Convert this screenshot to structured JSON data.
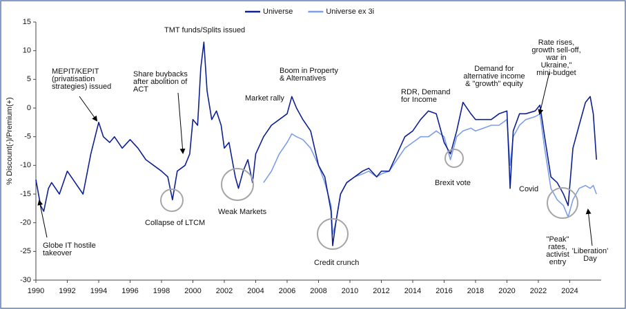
{
  "chart_data": {
    "type": "line",
    "ylabel": "% Discount(-)/Premium(+)",
    "x": [
      1990,
      1990.3,
      1990.5,
      1990.8,
      1991,
      1991.5,
      1992,
      1992.5,
      1993,
      1993.5,
      1994,
      1994.3,
      1994.7,
      1995,
      1995.5,
      1996,
      1996.5,
      1997,
      1997.5,
      1998,
      1998.4,
      1998.7,
      1999,
      1999.5,
      1999.8,
      2000,
      2000.3,
      2000.5,
      2000.7,
      2000.9,
      2001.2,
      2001.5,
      2001.8,
      2002,
      2002.3,
      2002.7,
      2002.9,
      2003.2,
      2003.5,
      2003.8,
      2004,
      2004.5,
      2005,
      2005.5,
      2006,
      2006.3,
      2006.6,
      2007,
      2007.5,
      2008,
      2008.4,
      2008.8,
      2008.9,
      2009.1,
      2009.4,
      2009.8,
      2010.3,
      2010.8,
      2011.2,
      2011.7,
      2012,
      2012.5,
      2013,
      2013.5,
      2014,
      2014.5,
      2015,
      2015.5,
      2016,
      2016.4,
      2016.8,
      2017.2,
      2017.7,
      2018,
      2018.5,
      2019,
      2019.5,
      2020,
      2020.2,
      2020.4,
      2020.8,
      2021.2,
      2021.8,
      2022.1,
      2022.4,
      2022.8,
      2023.2,
      2023.6,
      2023.9,
      2024.2,
      2024.6,
      2025,
      2025.3,
      2025.5,
      2025.7
    ],
    "series": [
      {
        "name": "Universe",
        "color": "#0d1f91",
        "values": [
          -12.5,
          -17,
          -18,
          -14,
          -13,
          -15,
          -11,
          -13,
          -15,
          -8,
          -2.5,
          -5,
          -6,
          -5,
          -7,
          -5.5,
          -7,
          -9,
          -10,
          -11,
          -12,
          -16,
          -11,
          -10,
          -8,
          -2,
          -3,
          7,
          11.5,
          3,
          -2,
          -0.5,
          -3,
          -7,
          -6,
          -12,
          -14,
          -11,
          -9,
          -13,
          -8,
          -5,
          -3,
          -2,
          -1,
          2,
          0,
          -2,
          -4,
          -10,
          -12,
          -18,
          -24,
          -20,
          -15,
          -13,
          -12,
          -11,
          -10.5,
          -12,
          -11,
          -11,
          -8,
          -5,
          -4,
          -2,
          -0.5,
          -1,
          -6,
          -8,
          -4,
          1,
          -1,
          -2,
          -2,
          -2,
          -1,
          -0.5,
          -14,
          -4,
          -1,
          -1,
          -0.5,
          0.5,
          -5,
          -12,
          -13,
          -15,
          -17,
          -7,
          -3,
          1,
          2,
          -1,
          -9
        ]
      },
      {
        "name": "Universe ex 3i",
        "color": "#7c9ee9",
        "values": [
          null,
          null,
          null,
          null,
          null,
          null,
          null,
          null,
          null,
          null,
          null,
          null,
          null,
          null,
          null,
          null,
          null,
          null,
          null,
          null,
          null,
          null,
          null,
          null,
          null,
          null,
          null,
          null,
          null,
          null,
          null,
          null,
          null,
          null,
          null,
          null,
          null,
          null,
          null,
          null,
          null,
          -13,
          -11,
          -8,
          -6,
          -4.5,
          -5,
          -5.5,
          -7,
          -10,
          -13,
          -17,
          -22,
          -20,
          -15,
          -13,
          -12,
          -11.5,
          -11,
          -12,
          -11.5,
          -11,
          -9,
          -7,
          -6,
          -5,
          -5,
          -4,
          -5,
          -9,
          -5,
          -4,
          -3.5,
          -4,
          -3.5,
          -3,
          -3,
          -2,
          -10,
          -5,
          -3,
          -2,
          -1.5,
          -1,
          -7,
          -14,
          -16,
          -17,
          -19,
          -16,
          -14,
          -13.5,
          -14,
          -13.5,
          -15
        ]
      }
    ],
    "xlim": [
      1990,
      2026
    ],
    "xticks": [
      1990,
      1992,
      1994,
      1996,
      1998,
      2000,
      2002,
      2004,
      2006,
      2008,
      2010,
      2012,
      2014,
      2016,
      2018,
      2020,
      2022,
      2024
    ],
    "ylim": [
      -30,
      15
    ],
    "yticks": [
      15,
      10,
      5,
      0,
      -5,
      -10,
      -15,
      -20,
      -25,
      -30
    ],
    "annotations": [
      [
        "Globe IT hostile",
        "takeover"
      ],
      [
        "MEPIT/KEPIT",
        "(privatisation",
        "strategies) issued"
      ],
      [
        "Share buybacks",
        "after abolition of",
        "ACT"
      ],
      [
        "TMT funds/Splits issued"
      ],
      [
        "Collapse of LTCM"
      ],
      [
        "Weak Markets"
      ],
      [
        "Market rally"
      ],
      [
        "Boom in Property",
        "& Alternatives"
      ],
      [
        "Credit crunch"
      ],
      [
        "RDR, Demand",
        "for Income"
      ],
      [
        "Brexit vote"
      ],
      [
        "Demand for",
        "alternative income",
        "& \"growth\" equity"
      ],
      [
        "Covid"
      ],
      [
        "Rate rises,",
        "growth sell-off,",
        "war in",
        "Ukraine,\"",
        "mini-budget"
      ],
      [
        "\"Peak\"",
        "rates,",
        "activist",
        "entry"
      ],
      [
        "'Liberation'",
        "Day"
      ]
    ]
  }
}
